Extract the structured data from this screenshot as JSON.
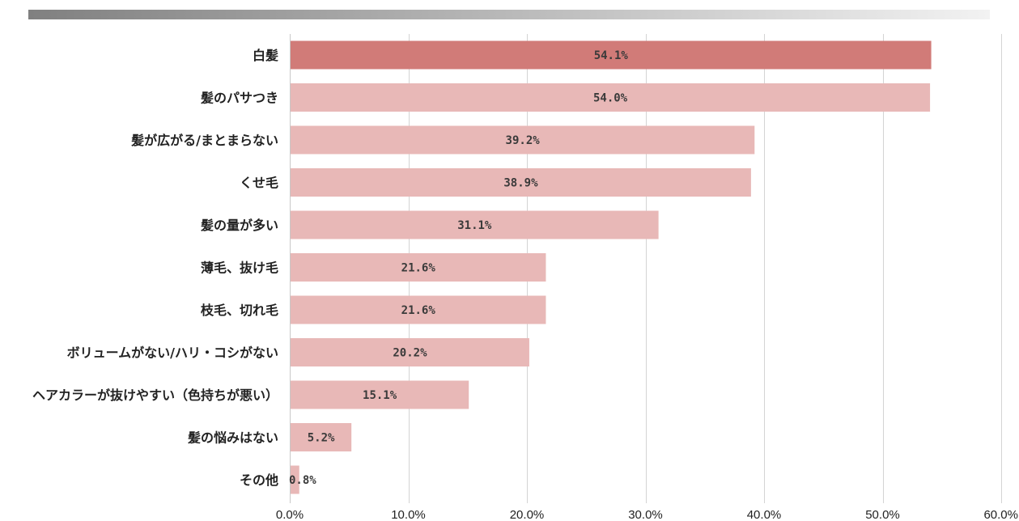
{
  "chart_data": {
    "type": "bar",
    "orientation": "horizontal",
    "categories": [
      "白髪",
      "髪のパサつき",
      "髪が広がる/まとまらない",
      "くせ毛",
      "髪の量が多い",
      "薄毛、抜け毛",
      "枝毛、切れ毛",
      "ボリュームがない/ハリ・コシがない",
      "ヘアカラーが抜けやすい（色持ちが悪い）",
      "髪の悩みはない",
      "その他"
    ],
    "values": [
      54.1,
      54.0,
      39.2,
      38.9,
      31.1,
      21.6,
      21.6,
      20.2,
      15.1,
      5.2,
      0.8
    ],
    "value_labels": [
      "54.1%",
      "54.0%",
      "39.2%",
      "38.9%",
      "31.1%",
      "21.6%",
      "21.6%",
      "20.2%",
      "15.1%",
      "5.2%",
      "0.8%"
    ],
    "xlim": [
      0,
      60
    ],
    "x_ticks": [
      0,
      10,
      20,
      30,
      40,
      50,
      60
    ],
    "x_tick_labels": [
      "0.0%",
      "10.0%",
      "20.0%",
      "30.0%",
      "40.0%",
      "50.0%",
      "60.0%"
    ],
    "grid": true,
    "highlight_index": 0,
    "colors": {
      "highlight": "#d17b78",
      "bar": "#e8b8b7",
      "grid": "#d4d4d4",
      "header_start": "#808080",
      "header_end": "#f2f2f2"
    }
  }
}
